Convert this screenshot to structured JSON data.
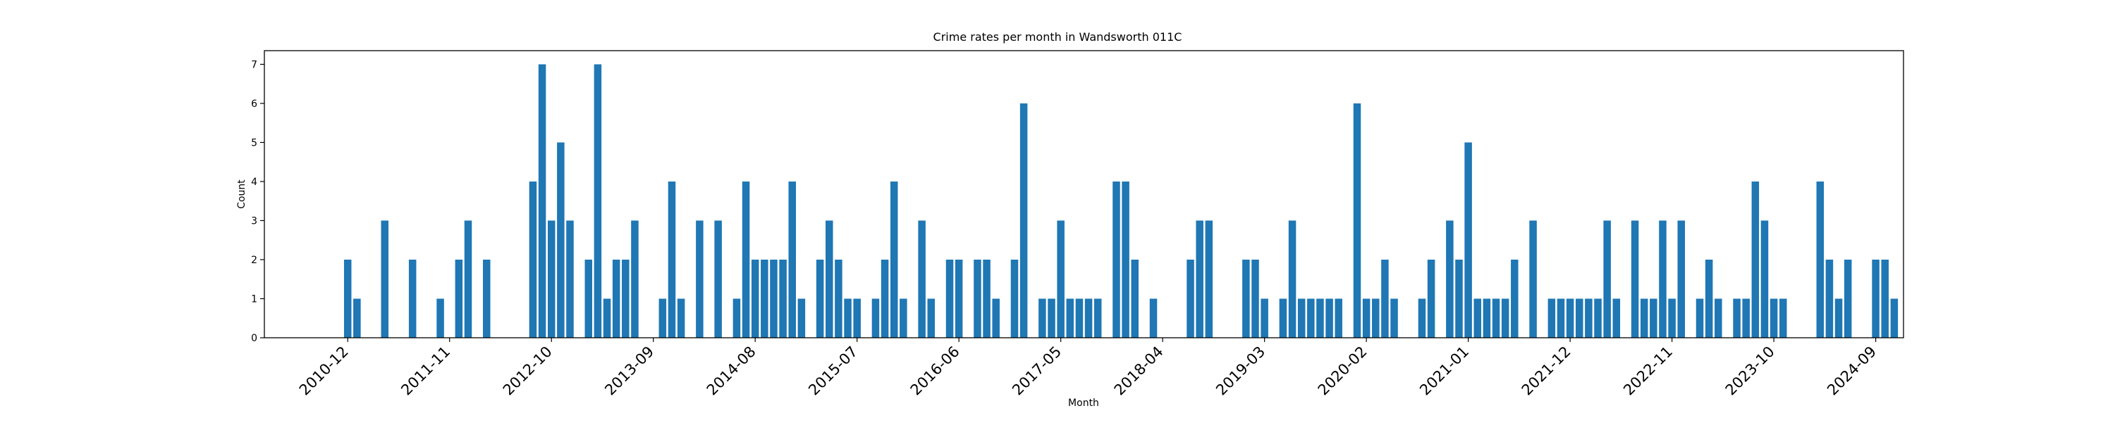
{
  "chart_data": {
    "type": "bar",
    "title": "Crime rates per month in Wandsworth 011C",
    "xlabel": "Month",
    "ylabel": "Count",
    "ylim": [
      0,
      7.35
    ],
    "yticks": [
      0,
      1,
      2,
      3,
      4,
      5,
      6,
      7
    ],
    "xticks": [
      "2010-12",
      "2011-11",
      "2012-10",
      "2013-09",
      "2014-08",
      "2015-07",
      "2016-06",
      "2017-05",
      "2018-04",
      "2019-03",
      "2020-02",
      "2021-01",
      "2021-12",
      "2022-11",
      "2023-10",
      "2024-09"
    ],
    "grid": false,
    "bar_color": "#1f77b4",
    "x": [
      "2010-12",
      "2011-01",
      "2011-04",
      "2011-07",
      "2011-10",
      "2011-12",
      "2012-01",
      "2012-03",
      "2012-08",
      "2012-09",
      "2012-10",
      "2012-11",
      "2012-12",
      "2013-02",
      "2013-03",
      "2013-04",
      "2013-05",
      "2013-06",
      "2013-07",
      "2013-10",
      "2013-11",
      "2013-12",
      "2014-02",
      "2014-04",
      "2014-06",
      "2014-07",
      "2014-08",
      "2014-09",
      "2014-10",
      "2014-11",
      "2014-12",
      "2015-01",
      "2015-03",
      "2015-04",
      "2015-05",
      "2015-06",
      "2015-07",
      "2015-09",
      "2015-10",
      "2015-11",
      "2015-12",
      "2016-02",
      "2016-03",
      "2016-05",
      "2016-06",
      "2016-08",
      "2016-09",
      "2016-10",
      "2016-12",
      "2017-01",
      "2017-03",
      "2017-04",
      "2017-05",
      "2017-06",
      "2017-07",
      "2017-08",
      "2017-09",
      "2017-11",
      "2017-12",
      "2018-01",
      "2018-03",
      "2018-07",
      "2018-08",
      "2018-09",
      "2019-01",
      "2019-02",
      "2019-03",
      "2019-05",
      "2019-06",
      "2019-07",
      "2019-08",
      "2019-09",
      "2019-10",
      "2019-11",
      "2020-01",
      "2020-02",
      "2020-03",
      "2020-04",
      "2020-05",
      "2020-08",
      "2020-09",
      "2020-11",
      "2020-12",
      "2021-01",
      "2021-02",
      "2021-03",
      "2021-04",
      "2021-05",
      "2021-06",
      "2021-08",
      "2021-10",
      "2021-11",
      "2021-12",
      "2022-01",
      "2022-02",
      "2022-03",
      "2022-04",
      "2022-05",
      "2022-07",
      "2022-08",
      "2022-09",
      "2022-10",
      "2022-11",
      "2022-12",
      "2023-02",
      "2023-03",
      "2023-04",
      "2023-06",
      "2023-07",
      "2023-08",
      "2023-09",
      "2023-10",
      "2023-11",
      "2024-03",
      "2024-04",
      "2024-05",
      "2024-06",
      "2024-09",
      "2024-10",
      "2024-11"
    ],
    "values": [
      2,
      1,
      3,
      2,
      1,
      2,
      3,
      2,
      4,
      7,
      3,
      5,
      3,
      2,
      7,
      1,
      2,
      2,
      3,
      1,
      4,
      1,
      3,
      3,
      1,
      4,
      2,
      2,
      2,
      2,
      4,
      1,
      2,
      3,
      2,
      1,
      1,
      1,
      2,
      4,
      1,
      3,
      1,
      2,
      2,
      2,
      2,
      1,
      2,
      6,
      1,
      1,
      3,
      1,
      1,
      1,
      1,
      4,
      4,
      2,
      1,
      2,
      3,
      3,
      2,
      2,
      1,
      1,
      3,
      1,
      1,
      1,
      1,
      1,
      6,
      1,
      1,
      2,
      1,
      1,
      2,
      3,
      2,
      5,
      1,
      1,
      1,
      1,
      2,
      3,
      1,
      1,
      1,
      1,
      1,
      1,
      3,
      1,
      3,
      1,
      1,
      3,
      1,
      3,
      1,
      2,
      1,
      1,
      1,
      4,
      3,
      1,
      1,
      4,
      2,
      1,
      2,
      2,
      2,
      1
    ]
  }
}
